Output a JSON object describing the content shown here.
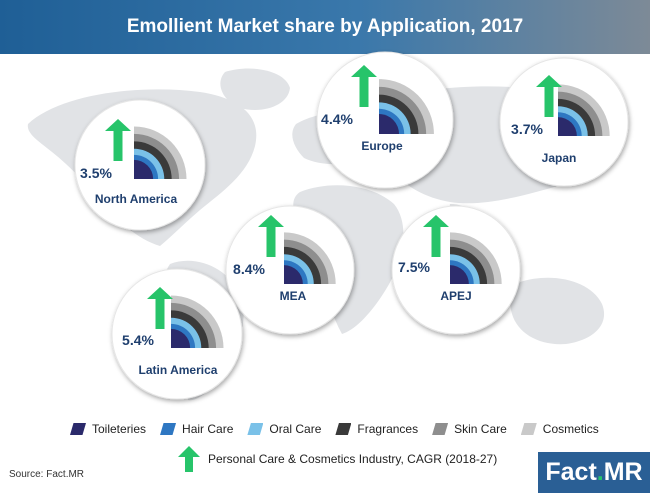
{
  "title": "Emollient Market share by Application, 2017",
  "colors": {
    "header_start": "#1f5f96",
    "header_end": "#7d8a97",
    "map": "#e1e3e6",
    "arrow": "#27c46a",
    "value_text": "#1f3f6e",
    "logo_bg": "#2a5f95"
  },
  "chart_data": {
    "type": "pie",
    "title": "Emollient Market share by Application, 2017",
    "segments": [
      {
        "name": "Toileteries",
        "color": "#2b2a6b"
      },
      {
        "name": "Hair Care",
        "color": "#2e77c2"
      },
      {
        "name": "Oral Care",
        "color": "#7ac1e8"
      },
      {
        "name": "Fragrances",
        "color": "#3a3a3a"
      },
      {
        "name": "Skin Care",
        "color": "#8e8e8e"
      },
      {
        "name": "Cosmetics",
        "color": "#c9c9c9"
      }
    ],
    "regions": [
      {
        "name": "North America",
        "cagr": "3.5%"
      },
      {
        "name": "Europe",
        "cagr": "4.4%"
      },
      {
        "name": "Japan",
        "cagr": "3.7%"
      },
      {
        "name": "MEA",
        "cagr": "8.4%"
      },
      {
        "name": "APEJ",
        "cagr": "7.5%"
      },
      {
        "name": "Latin America",
        "cagr": "5.4%"
      }
    ]
  },
  "legend": {
    "items": [
      "Toileteries",
      "Hair Care",
      "Oral Care",
      "Fragrances",
      "Skin Care",
      "Cosmetics"
    ],
    "cagr_label": "Personal Care & Cosmetics Industry, CAGR (2018-27)"
  },
  "source": "Source: Fact.MR",
  "logo": {
    "name": "Fact",
    "dot": ".",
    "suffix": "MR"
  }
}
